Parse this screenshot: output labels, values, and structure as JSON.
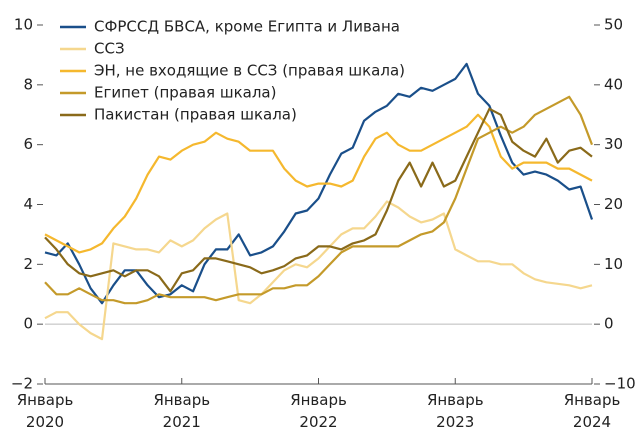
{
  "chart_data": {
    "type": "line",
    "categories": [
      "Январь 2020",
      null,
      null,
      null,
      null,
      null,
      null,
      null,
      null,
      null,
      null,
      null,
      "Январь 2021",
      null,
      null,
      null,
      null,
      null,
      null,
      null,
      null,
      null,
      null,
      null,
      "Январь 2022",
      null,
      null,
      null,
      null,
      null,
      null,
      null,
      null,
      null,
      null,
      null,
      "Январь 2023",
      null,
      null,
      null,
      null,
      null,
      null,
      null,
      null,
      null,
      null,
      null,
      "Январь 2024"
    ],
    "ylim": [
      -2,
      10
    ],
    "yticks": [
      {
        "value": -2,
        "label": "−2"
      },
      0,
      2,
      4,
      6,
      8,
      10
    ],
    "y2lim": [
      -10,
      50
    ],
    "y2ticks": [
      {
        "value": -10,
        "label": "−10"
      },
      0,
      10,
      20,
      30,
      40,
      50
    ],
    "legend": "top-left",
    "series": [
      {
        "name": "СФРССД БВСА, кроме Египта и Ливана",
        "color": "#1a4f8a",
        "axis": "y",
        "values": [
          2.4,
          2.3,
          2.7,
          2.0,
          1.2,
          0.7,
          1.3,
          1.8,
          1.8,
          1.3,
          0.9,
          1.0,
          1.3,
          1.1,
          2.0,
          2.5,
          2.5,
          3.0,
          2.3,
          2.4,
          2.6,
          3.1,
          3.7,
          3.8,
          4.2,
          5.0,
          5.7,
          5.9,
          6.8,
          7.1,
          7.3,
          7.7,
          7.6,
          7.9,
          7.8,
          8.0,
          8.2,
          8.7,
          7.7,
          7.3,
          6.3,
          5.4,
          5.0,
          5.1,
          5.0,
          4.8,
          4.5,
          4.6,
          3.5
        ]
      },
      {
        "name": "ССЗ",
        "color": "#f5d78e",
        "axis": "y",
        "values": [
          0.2,
          0.4,
          0.4,
          0.0,
          -0.3,
          -0.5,
          2.7,
          2.6,
          2.5,
          2.5,
          2.4,
          2.8,
          2.6,
          2.8,
          3.2,
          3.5,
          3.7,
          0.8,
          0.7,
          1.0,
          1.4,
          1.8,
          2.0,
          1.9,
          2.2,
          2.6,
          3.0,
          3.2,
          3.2,
          3.6,
          4.1,
          3.9,
          3.6,
          3.4,
          3.5,
          3.7,
          2.5,
          2.3,
          2.1,
          2.1,
          2.0,
          2.0,
          1.7,
          1.5,
          1.4,
          1.35,
          1.3,
          1.2,
          1.3
        ]
      },
      {
        "name": "ЭН, не входящие в ССЗ (правая шкала)",
        "color": "#f5b82e",
        "axis": "y2",
        "values": [
          15,
          14,
          13,
          12,
          12.5,
          13.5,
          16,
          18,
          21,
          25,
          28,
          27.5,
          29,
          30,
          30.5,
          32,
          31,
          30.5,
          29,
          29,
          29,
          26,
          24,
          23,
          23.5,
          23.5,
          23,
          24,
          28,
          31,
          32,
          30,
          29,
          29,
          30,
          31,
          32,
          33,
          35,
          33,
          28,
          26,
          27,
          27,
          27,
          26,
          26,
          25,
          24
        ]
      },
      {
        "name": "Египет (правая шкала)",
        "color": "#c49a2a",
        "axis": "y2",
        "values": [
          7,
          5,
          5,
          6,
          5,
          4,
          4,
          3.5,
          3.5,
          4,
          5,
          4.5,
          4.5,
          4.5,
          4.5,
          4,
          4.5,
          5,
          5,
          5,
          6,
          6,
          6.5,
          6.5,
          8,
          10,
          12,
          13,
          13,
          13,
          13,
          13,
          14,
          15,
          15.5,
          17,
          21,
          26,
          31,
          32,
          33,
          32,
          33,
          35,
          36,
          37,
          38,
          35,
          30
        ]
      },
      {
        "name": "Пакистан (правая шкала)",
        "color": "#8a6a1a",
        "axis": "y2",
        "values": [
          14.5,
          12.5,
          10,
          8.5,
          8,
          8.5,
          9,
          8,
          9,
          9,
          8,
          5.5,
          8.5,
          9,
          11,
          11,
          10.5,
          10,
          9.5,
          8.5,
          9,
          9.7,
          11,
          11.5,
          13,
          13,
          12.5,
          13.5,
          14,
          15,
          19,
          24,
          27,
          23,
          27,
          23,
          24,
          28,
          32,
          36,
          35,
          30.5,
          29,
          28,
          31,
          27,
          29,
          29.5,
          28
        ]
      }
    ]
  }
}
